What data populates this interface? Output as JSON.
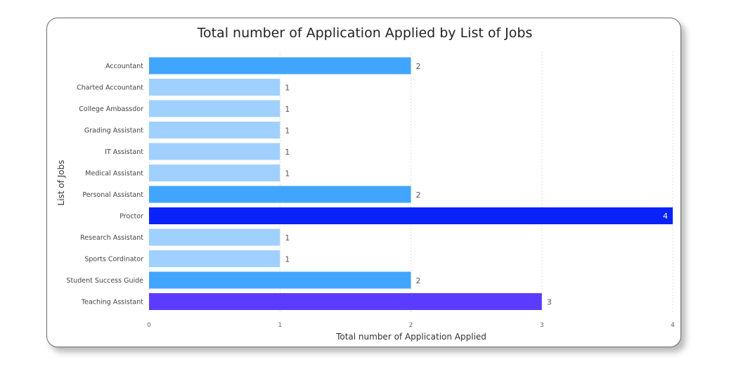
{
  "chart_data": {
    "type": "bar",
    "orientation": "horizontal",
    "title": "Total number of Application Applied by List of Jobs",
    "xlabel": "Total number of Application Applied",
    "ylabel": "List of Jobs",
    "xlim": [
      0,
      4
    ],
    "xticks": [
      "0",
      "1",
      "2",
      "3",
      "4"
    ],
    "grid": "vertical-dotted",
    "categories": [
      "Accountant",
      "Charted Accountant",
      "College Ambassdor",
      "Grading Assistant",
      "IT Assistant",
      "Medical Assistant",
      "Personal Assistant",
      "Proctor",
      "Research Assistant",
      "Sports Cordinator",
      "Student Success Guide",
      "Teaching Assistant"
    ],
    "values": [
      2,
      1,
      1,
      1,
      1,
      1,
      2,
      4,
      1,
      1,
      2,
      3
    ],
    "colors": {
      "1": "#a0d0fd",
      "2": "#42a5fd",
      "3": "#5b3cff",
      "4": "#0a22fa"
    },
    "data_label_color_on_bar": "#ffffff",
    "data_label_color": "#555555"
  }
}
